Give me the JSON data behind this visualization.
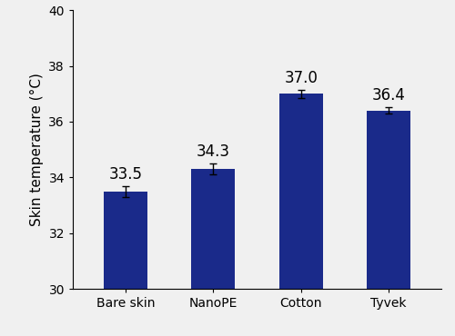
{
  "categories": [
    "Bare skin",
    "NanoPE",
    "Cotton",
    "Tyvek"
  ],
  "values": [
    33.5,
    34.3,
    37.0,
    36.4
  ],
  "errors": [
    0.2,
    0.2,
    0.15,
    0.12
  ],
  "bar_color": "#1a2a8a",
  "ylabel": "Skin temperature (°C)",
  "ylim": [
    30,
    40
  ],
  "yticks": [
    30,
    32,
    34,
    36,
    38,
    40
  ],
  "label_fontsize": 11,
  "tick_fontsize": 10,
  "value_fontsize": 12,
  "bar_width": 0.5,
  "figsize": [
    5.0,
    3.7
  ],
  "dpi": 100,
  "bg_color": "#f0f0f0"
}
